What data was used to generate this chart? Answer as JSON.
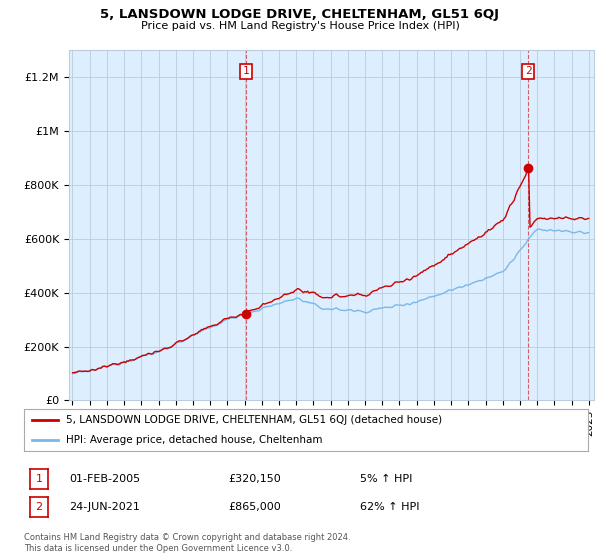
{
  "title": "5, LANSDOWN LODGE DRIVE, CHELTENHAM, GL51 6QJ",
  "subtitle": "Price paid vs. HM Land Registry's House Price Index (HPI)",
  "ylabel_ticks": [
    "£0",
    "£200K",
    "£400K",
    "£600K",
    "£800K",
    "£1M",
    "£1.2M"
  ],
  "ytick_values": [
    0,
    200000,
    400000,
    600000,
    800000,
    1000000,
    1200000
  ],
  "ylim": [
    0,
    1300000
  ],
  "xlim_start": 1994.8,
  "xlim_end": 2025.3,
  "hpi_color": "#7ab8e8",
  "price_color": "#cc0000",
  "chart_bg_color": "#ddeeff",
  "sale1_year": 2005.08,
  "sale1_price": 320150,
  "sale2_year": 2021.48,
  "sale2_price": 865000,
  "legend_house": "5, LANSDOWN LODGE DRIVE, CHELTENHAM, GL51 6QJ (detached house)",
  "legend_hpi": "HPI: Average price, detached house, Cheltenham",
  "note1_label": "01-FEB-2005",
  "note1_price": "£320,150",
  "note1_pct": "5% ↑ HPI",
  "note2_label": "24-JUN-2021",
  "note2_price": "£865,000",
  "note2_pct": "62% ↑ HPI",
  "footer": "Contains HM Land Registry data © Crown copyright and database right 2024.\nThis data is licensed under the Open Government Licence v3.0.",
  "background_color": "#ffffff",
  "grid_color": "#bbccdd"
}
